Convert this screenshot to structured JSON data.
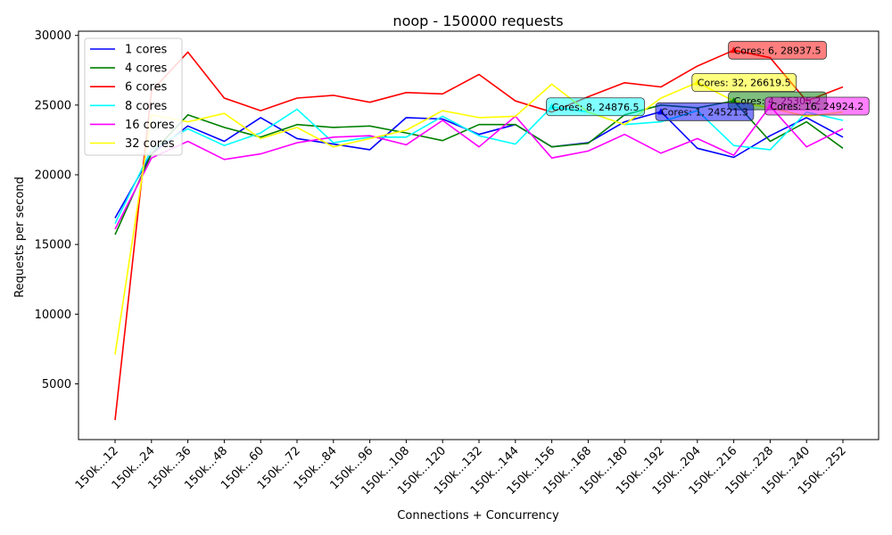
{
  "chart_data": {
    "type": "line",
    "title": "noop - 150000 requests",
    "xlabel": "Connections + Concurrency",
    "ylabel": "Requests per second",
    "ylim": [
      1000,
      30300
    ],
    "y_ticks": [
      5000,
      10000,
      15000,
      20000,
      25000,
      30000
    ],
    "grid": false,
    "legend_position": "upper-left",
    "categories": [
      "150k...12",
      "150k...24",
      "150k...36",
      "150k...48",
      "150k...60",
      "150k...72",
      "150k...84",
      "150k...96",
      "150k...108",
      "150k...120",
      "150k...132",
      "150k...144",
      "150k...156",
      "150k...168",
      "150k...180",
      "150k...192",
      "150k...204",
      "150k...216",
      "150k...228",
      "150k...240",
      "150k...252"
    ],
    "series": [
      {
        "name": "1 cores",
        "color": "#0000ff",
        "values": [
          16900,
          21500,
          23500,
          22400,
          24100,
          22600,
          22200,
          21800,
          24100,
          24000,
          22900,
          23600,
          22000,
          22300,
          23800,
          24521.3,
          21900,
          21250,
          22800,
          24100,
          22700
        ]
      },
      {
        "name": "4 cores",
        "color": "#008000",
        "values": [
          15700,
          21500,
          24300,
          23400,
          22700,
          23600,
          23400,
          23500,
          23000,
          22450,
          23600,
          23600,
          22000,
          22250,
          24300,
          25000,
          24800,
          25305.2,
          22400,
          23800,
          21900
        ]
      },
      {
        "name": "6 cores",
        "color": "#ff0000",
        "values": [
          2400,
          26000,
          28800,
          25500,
          24600,
          25500,
          25700,
          25200,
          25900,
          25800,
          27200,
          25300,
          24500,
          25600,
          26600,
          26300,
          27800,
          28937.5,
          28400,
          25300,
          26300
        ]
      },
      {
        "name": "8 cores",
        "color": "#00ffff",
        "values": [
          16500,
          21800,
          23300,
          22100,
          23000,
          24700,
          22300,
          22700,
          22700,
          24200,
          22800,
          22200,
          24876.5,
          24500,
          23600,
          23800,
          24600,
          22100,
          21800,
          24500,
          23900
        ]
      },
      {
        "name": "16 cores",
        "color": "#ff00ff",
        "values": [
          16100,
          21200,
          22400,
          21100,
          21500,
          22300,
          22700,
          22800,
          22150,
          23900,
          22000,
          24200,
          21200,
          21700,
          22900,
          21550,
          22600,
          21400,
          24924.2,
          22000,
          23300
        ]
      },
      {
        "name": "32 cores",
        "color": "#ffff00",
        "values": [
          7100,
          24300,
          23800,
          24400,
          22600,
          23400,
          22000,
          22600,
          23200,
          24600,
          24100,
          24200,
          26500,
          24500,
          23600,
          25500,
          26619.5,
          25300,
          24800,
          24200,
          24500
        ]
      }
    ],
    "annotations": [
      {
        "label": "Cores: 6, 28937.5",
        "series": 2,
        "index": 17
      },
      {
        "label": "Cores: 32, 26619.5",
        "series": 5,
        "index": 16
      },
      {
        "label": "Cores: 4, 25305.2",
        "series": 1,
        "index": 17
      },
      {
        "label": "Cores: 16, 24924.2",
        "series": 4,
        "index": 18
      },
      {
        "label": "Cores: 8, 24876.5",
        "series": 3,
        "index": 12
      },
      {
        "label": "Cores: 1, 24521.3",
        "series": 0,
        "index": 15
      }
    ]
  }
}
